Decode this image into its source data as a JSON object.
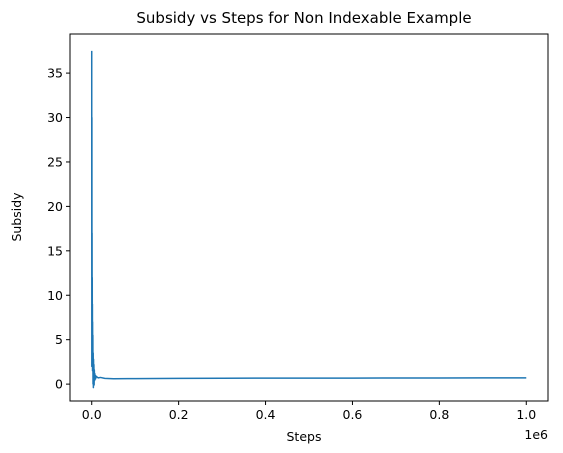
{
  "chart_data": {
    "type": "line",
    "title": "Subsidy vs Steps for Non Indexable Example",
    "xlabel": "Steps",
    "ylabel": "Subsidy",
    "x_offset_label": "1e6",
    "xlim": [
      -50000,
      1050000
    ],
    "ylim": [
      -1.9,
      39.4
    ],
    "x_ticks": [
      0,
      200000,
      400000,
      600000,
      800000,
      1000000
    ],
    "x_tick_labels": [
      "0.0",
      "0.2",
      "0.4",
      "0.6",
      "0.8",
      "1.0"
    ],
    "y_ticks": [
      0,
      5,
      10,
      15,
      20,
      25,
      30,
      35
    ],
    "y_tick_labels": [
      "0",
      "5",
      "10",
      "15",
      "20",
      "25",
      "30",
      "35"
    ],
    "grid": false,
    "color": "#1f77b4",
    "series": [
      {
        "x": [
          0,
          200,
          400,
          600,
          800,
          1000,
          1200,
          1400,
          1600,
          1800,
          2000,
          2300,
          2600,
          3000,
          3400,
          3800,
          4200,
          4600,
          5000,
          5500,
          6000,
          6500,
          7000,
          7500,
          8000,
          9000,
          10000,
          12000,
          15000,
          20000,
          30000,
          50000,
          100000,
          200000,
          300000,
          400000,
          500000,
          600000,
          700000,
          800000,
          900000,
          1000000
        ],
        "y": [
          37.5,
          2.0,
          30.0,
          6.0,
          17.0,
          4.0,
          12.0,
          2.5,
          9.0,
          1.5,
          7.0,
          2.0,
          5.5,
          0.0,
          3.5,
          -0.4,
          2.8,
          0.3,
          2.2,
          -0.1,
          1.6,
          0.4,
          1.2,
          0.5,
          1.0,
          0.6,
          0.9,
          0.8,
          0.7,
          0.75,
          0.65,
          0.6,
          0.62,
          0.65,
          0.66,
          0.67,
          0.68,
          0.68,
          0.69,
          0.69,
          0.7,
          0.7
        ]
      }
    ]
  }
}
